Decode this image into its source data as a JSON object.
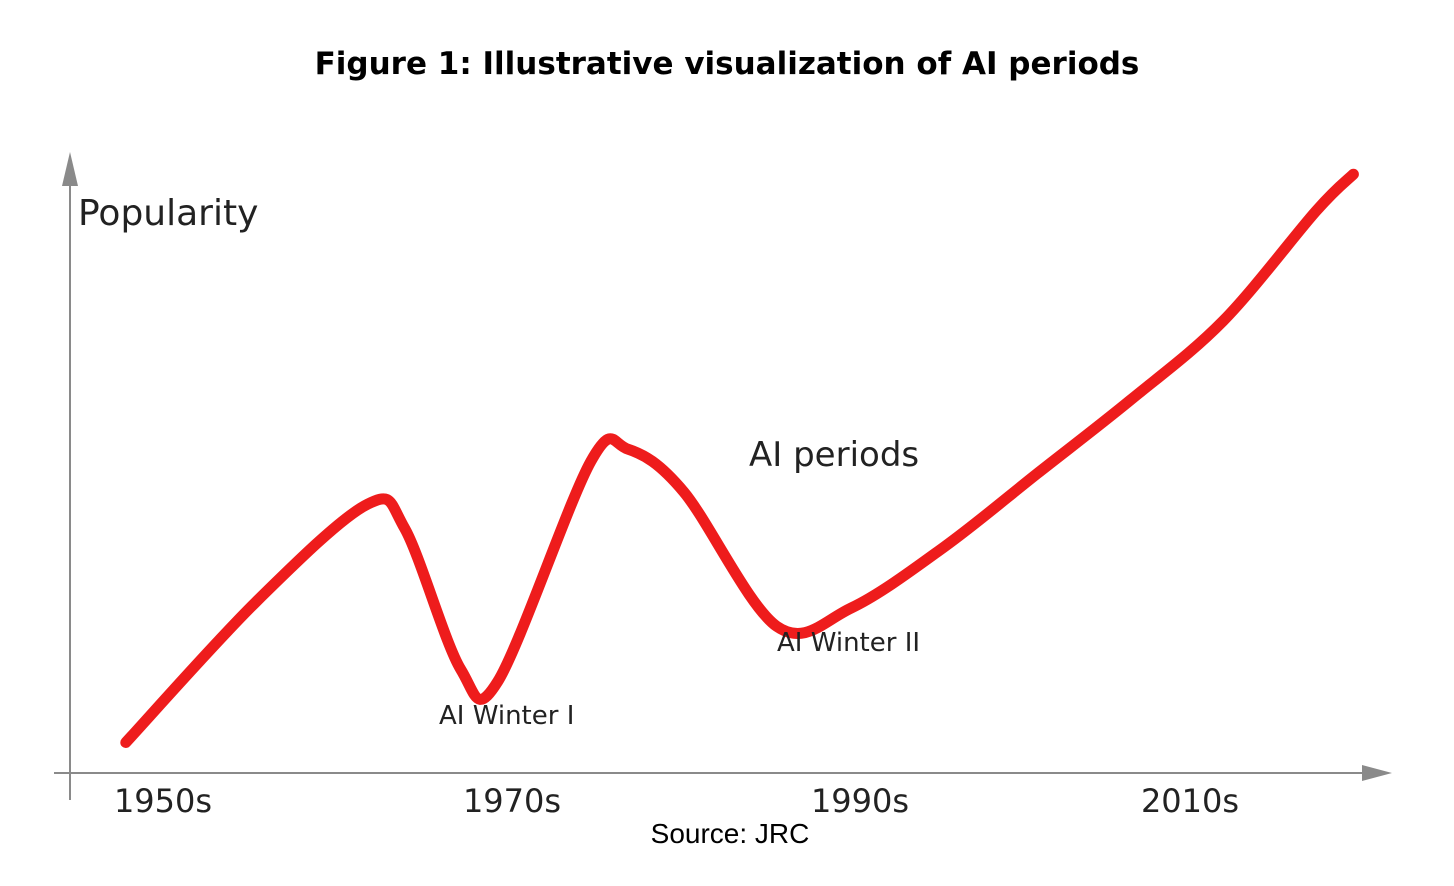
{
  "figure": {
    "title": "Figure 1: Illustrative visualization of AI periods",
    "source": "Source: JRC"
  },
  "chart_data": {
    "type": "line",
    "ylabel": "Popularity",
    "xlabel": "",
    "xticks": [
      "1950s",
      "1970s",
      "1990s",
      "2010s"
    ],
    "xlim": [
      1948,
      2018
    ],
    "ylim": [
      0,
      100
    ],
    "series": [
      {
        "name": "",
        "color": "#ee1c1c",
        "x": [
          1951,
          1958,
          1964,
          1966,
          1969,
          1971,
          1976,
          1978,
          1981,
          1986,
          1990,
          1995,
          2000,
          2005,
          2010,
          2015,
          2017
        ],
        "y": [
          5,
          28,
          44,
          40,
          17,
          15,
          51,
          53,
          46,
          24,
          27,
          37,
          49,
          61,
          74,
          92,
          98
        ]
      }
    ],
    "annotations": [
      {
        "text": "AI periods",
        "x": 1982,
        "y": 60
      },
      {
        "text": "AI Winter I",
        "x": 1970,
        "y": 8
      },
      {
        "text": "AI Winter II",
        "x": 1989,
        "y": 19
      }
    ],
    "axis_color": "#8a8a8a",
    "grid": false
  }
}
